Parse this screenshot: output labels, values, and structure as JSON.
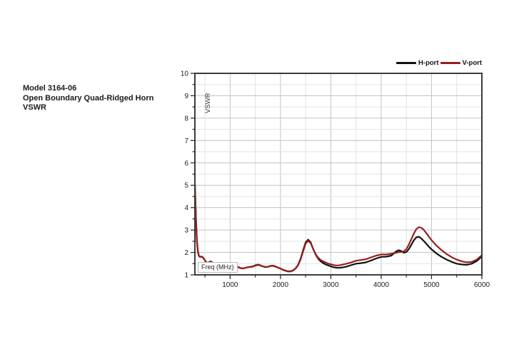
{
  "info_block": {
    "line1": "Model 3164-06",
    "line2": "Open Boundary Quad-Ridged Horn",
    "line3": "VSWR"
  },
  "chart_data": {
    "type": "line",
    "title": "",
    "xlabel": "Freq (MHz)",
    "ylabel": "VSWR",
    "xlim": [
      300,
      6000
    ],
    "ylim": [
      1,
      10
    ],
    "x_major_ticks": [
      1000,
      2000,
      3000,
      4000,
      5000,
      6000
    ],
    "x_minor_step": 500,
    "y_major_ticks": [
      1,
      2,
      3,
      4,
      5,
      6,
      7,
      8,
      9,
      10
    ],
    "y_minor_step": 0.5,
    "grid": true,
    "legend_position": "top-right",
    "series": [
      {
        "name": "H-port",
        "color": "#111111",
        "points": [
          [
            300,
            5.1
          ],
          [
            320,
            3.6
          ],
          [
            340,
            2.55
          ],
          [
            360,
            2.05
          ],
          [
            380,
            1.86
          ],
          [
            400,
            1.8
          ],
          [
            430,
            1.82
          ],
          [
            460,
            1.78
          ],
          [
            490,
            1.68
          ],
          [
            520,
            1.58
          ],
          [
            550,
            1.53
          ],
          [
            580,
            1.56
          ],
          [
            610,
            1.6
          ],
          [
            640,
            1.57
          ],
          [
            670,
            1.5
          ],
          [
            700,
            1.46
          ],
          [
            730,
            1.44
          ],
          [
            760,
            1.49
          ],
          [
            790,
            1.52
          ],
          [
            820,
            1.48
          ],
          [
            850,
            1.43
          ],
          [
            880,
            1.39
          ],
          [
            910,
            1.38
          ],
          [
            940,
            1.4
          ],
          [
            970,
            1.44
          ],
          [
            1000,
            1.47
          ],
          [
            1030,
            1.5
          ],
          [
            1060,
            1.49
          ],
          [
            1090,
            1.45
          ],
          [
            1120,
            1.4
          ],
          [
            1150,
            1.36
          ],
          [
            1200,
            1.31
          ],
          [
            1250,
            1.29
          ],
          [
            1300,
            1.31
          ],
          [
            1350,
            1.34
          ],
          [
            1400,
            1.35
          ],
          [
            1450,
            1.37
          ],
          [
            1500,
            1.41
          ],
          [
            1550,
            1.45
          ],
          [
            1600,
            1.42
          ],
          [
            1650,
            1.38
          ],
          [
            1700,
            1.35
          ],
          [
            1750,
            1.36
          ],
          [
            1800,
            1.39
          ],
          [
            1850,
            1.4
          ],
          [
            1900,
            1.37
          ],
          [
            1950,
            1.32
          ],
          [
            2000,
            1.28
          ],
          [
            2050,
            1.23
          ],
          [
            2100,
            1.19
          ],
          [
            2150,
            1.16
          ],
          [
            2200,
            1.16
          ],
          [
            2250,
            1.2
          ],
          [
            2300,
            1.29
          ],
          [
            2350,
            1.45
          ],
          [
            2400,
            1.72
          ],
          [
            2450,
            2.1
          ],
          [
            2500,
            2.45
          ],
          [
            2550,
            2.57
          ],
          [
            2600,
            2.45
          ],
          [
            2650,
            2.15
          ],
          [
            2700,
            1.9
          ],
          [
            2750,
            1.72
          ],
          [
            2800,
            1.6
          ],
          [
            2850,
            1.52
          ],
          [
            2900,
            1.46
          ],
          [
            2950,
            1.42
          ],
          [
            3000,
            1.38
          ],
          [
            3050,
            1.34
          ],
          [
            3100,
            1.32
          ],
          [
            3150,
            1.31
          ],
          [
            3200,
            1.32
          ],
          [
            3300,
            1.36
          ],
          [
            3400,
            1.43
          ],
          [
            3500,
            1.5
          ],
          [
            3600,
            1.52
          ],
          [
            3700,
            1.56
          ],
          [
            3800,
            1.64
          ],
          [
            3900,
            1.73
          ],
          [
            4000,
            1.8
          ],
          [
            4100,
            1.81
          ],
          [
            4200,
            1.86
          ],
          [
            4300,
            2.05
          ],
          [
            4350,
            2.1
          ],
          [
            4400,
            2.06
          ],
          [
            4450,
            1.99
          ],
          [
            4500,
            2.02
          ],
          [
            4550,
            2.15
          ],
          [
            4600,
            2.35
          ],
          [
            4650,
            2.55
          ],
          [
            4700,
            2.68
          ],
          [
            4750,
            2.7
          ],
          [
            4800,
            2.62
          ],
          [
            4850,
            2.5
          ],
          [
            4900,
            2.38
          ],
          [
            4950,
            2.25
          ],
          [
            5000,
            2.14
          ],
          [
            5100,
            1.95
          ],
          [
            5200,
            1.8
          ],
          [
            5300,
            1.68
          ],
          [
            5400,
            1.58
          ],
          [
            5500,
            1.5
          ],
          [
            5600,
            1.46
          ],
          [
            5700,
            1.45
          ],
          [
            5800,
            1.5
          ],
          [
            5900,
            1.62
          ],
          [
            6000,
            1.82
          ]
        ]
      },
      {
        "name": "V-port",
        "color": "#961e1e",
        "points": [
          [
            300,
            5.0
          ],
          [
            320,
            3.55
          ],
          [
            340,
            2.5
          ],
          [
            360,
            2.02
          ],
          [
            380,
            1.84
          ],
          [
            400,
            1.8
          ],
          [
            430,
            1.81
          ],
          [
            460,
            1.77
          ],
          [
            490,
            1.68
          ],
          [
            520,
            1.57
          ],
          [
            550,
            1.53
          ],
          [
            580,
            1.56
          ],
          [
            610,
            1.59
          ],
          [
            640,
            1.56
          ],
          [
            670,
            1.5
          ],
          [
            700,
            1.46
          ],
          [
            730,
            1.45
          ],
          [
            760,
            1.5
          ],
          [
            790,
            1.52
          ],
          [
            820,
            1.47
          ],
          [
            850,
            1.42
          ],
          [
            880,
            1.38
          ],
          [
            910,
            1.38
          ],
          [
            940,
            1.41
          ],
          [
            970,
            1.45
          ],
          [
            1000,
            1.48
          ],
          [
            1030,
            1.5
          ],
          [
            1060,
            1.48
          ],
          [
            1090,
            1.44
          ],
          [
            1120,
            1.39
          ],
          [
            1150,
            1.35
          ],
          [
            1200,
            1.3
          ],
          [
            1250,
            1.28
          ],
          [
            1300,
            1.31
          ],
          [
            1350,
            1.34
          ],
          [
            1400,
            1.36
          ],
          [
            1450,
            1.38
          ],
          [
            1500,
            1.43
          ],
          [
            1550,
            1.46
          ],
          [
            1600,
            1.43
          ],
          [
            1650,
            1.38
          ],
          [
            1700,
            1.34
          ],
          [
            1750,
            1.36
          ],
          [
            1800,
            1.4
          ],
          [
            1850,
            1.41
          ],
          [
            1900,
            1.38
          ],
          [
            1950,
            1.33
          ],
          [
            2000,
            1.28
          ],
          [
            2050,
            1.22
          ],
          [
            2100,
            1.18
          ],
          [
            2150,
            1.15
          ],
          [
            2200,
            1.15
          ],
          [
            2250,
            1.19
          ],
          [
            2300,
            1.28
          ],
          [
            2350,
            1.43
          ],
          [
            2400,
            1.69
          ],
          [
            2450,
            2.05
          ],
          [
            2500,
            2.4
          ],
          [
            2550,
            2.52
          ],
          [
            2600,
            2.42
          ],
          [
            2650,
            2.15
          ],
          [
            2700,
            1.92
          ],
          [
            2750,
            1.76
          ],
          [
            2800,
            1.66
          ],
          [
            2850,
            1.6
          ],
          [
            2900,
            1.55
          ],
          [
            2950,
            1.5
          ],
          [
            3000,
            1.47
          ],
          [
            3050,
            1.44
          ],
          [
            3100,
            1.42
          ],
          [
            3150,
            1.42
          ],
          [
            3200,
            1.44
          ],
          [
            3300,
            1.49
          ],
          [
            3400,
            1.55
          ],
          [
            3500,
            1.63
          ],
          [
            3600,
            1.66
          ],
          [
            3700,
            1.7
          ],
          [
            3800,
            1.78
          ],
          [
            3900,
            1.86
          ],
          [
            4000,
            1.91
          ],
          [
            4100,
            1.91
          ],
          [
            4200,
            1.94
          ],
          [
            4300,
            1.99
          ],
          [
            4350,
            2.01
          ],
          [
            4400,
            2.02
          ],
          [
            4450,
            2.05
          ],
          [
            4500,
            2.15
          ],
          [
            4550,
            2.35
          ],
          [
            4600,
            2.6
          ],
          [
            4650,
            2.85
          ],
          [
            4700,
            3.05
          ],
          [
            4750,
            3.13
          ],
          [
            4800,
            3.1
          ],
          [
            4850,
            3.0
          ],
          [
            4900,
            2.85
          ],
          [
            4950,
            2.7
          ],
          [
            5000,
            2.55
          ],
          [
            5100,
            2.3
          ],
          [
            5200,
            2.1
          ],
          [
            5300,
            1.93
          ],
          [
            5400,
            1.79
          ],
          [
            5500,
            1.68
          ],
          [
            5600,
            1.6
          ],
          [
            5700,
            1.56
          ],
          [
            5800,
            1.58
          ],
          [
            5900,
            1.68
          ],
          [
            6000,
            1.88
          ]
        ]
      }
    ]
  }
}
